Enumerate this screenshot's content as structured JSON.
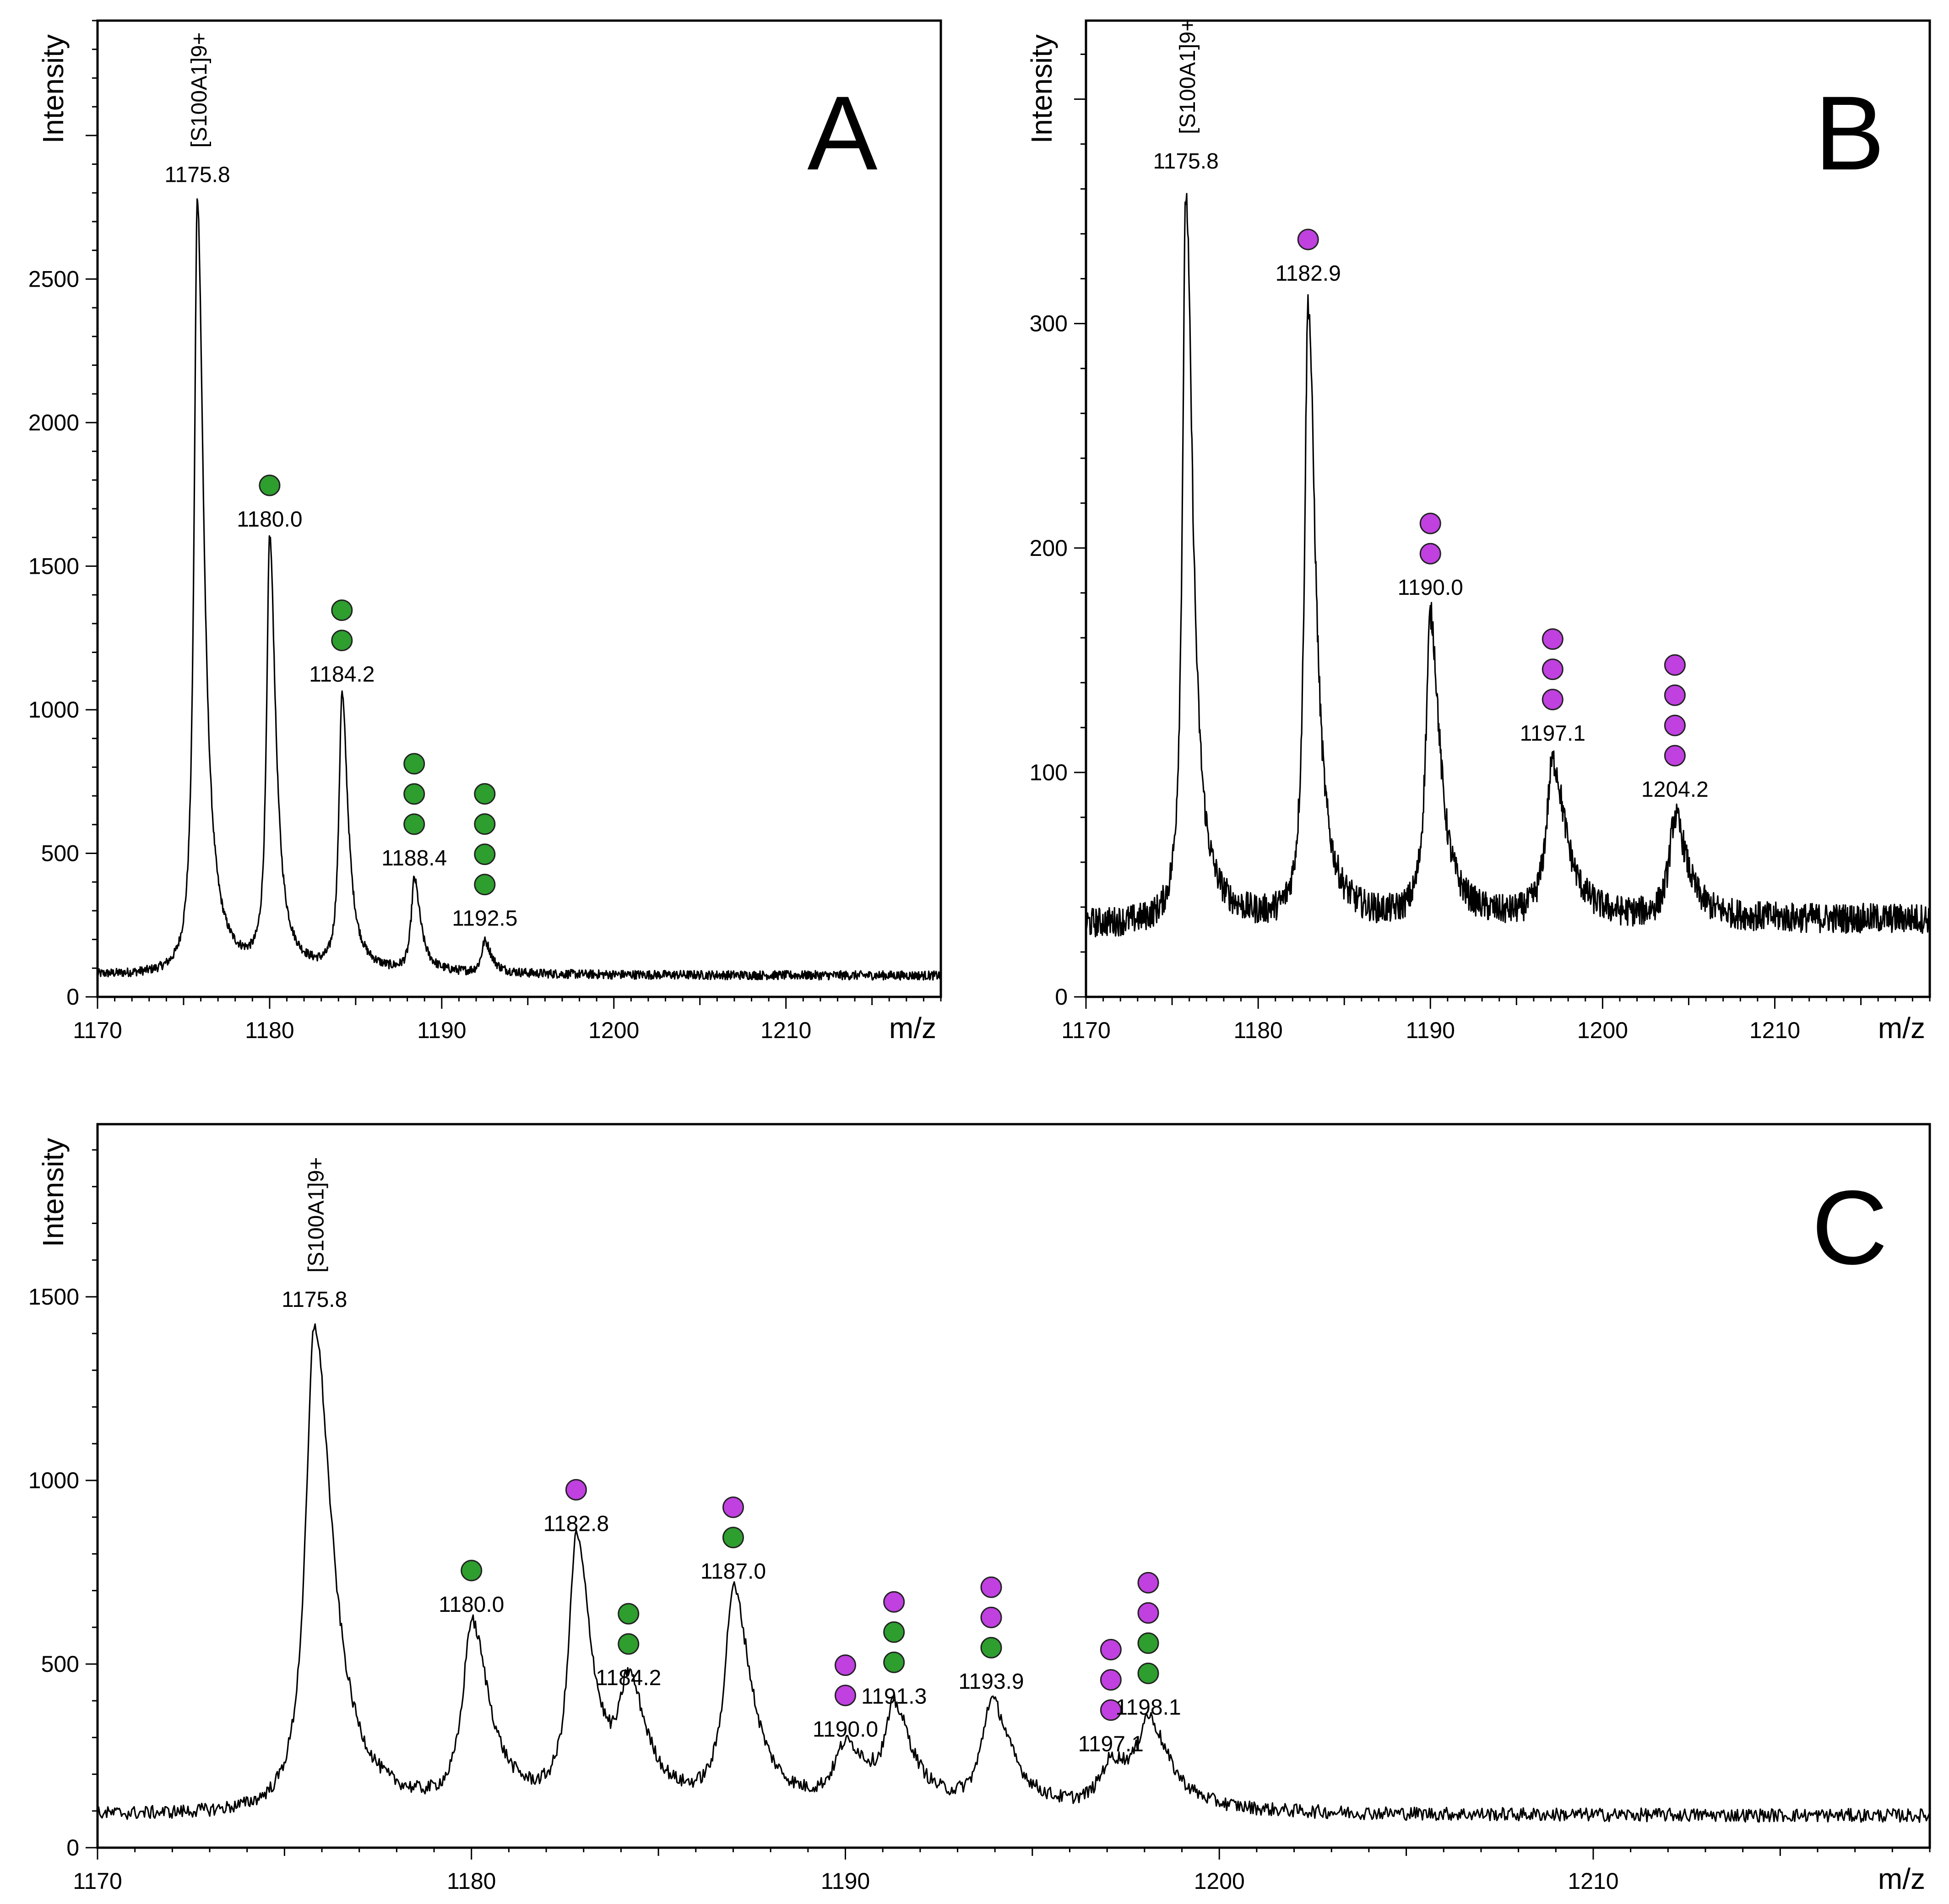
{
  "chart_data": [
    {
      "type": "line",
      "panel": "A",
      "xlabel": "m/z",
      "ylabel": "Intensity",
      "xlim": [
        1170,
        1219
      ],
      "ylim": [
        0,
        3400
      ],
      "xticks": [
        1170,
        1180,
        1190,
        1200,
        1210
      ],
      "yticks": [
        0,
        500,
        1000,
        1500,
        2000,
        2500
      ],
      "grid": false,
      "baseline": 90,
      "ion_label": "[S100A1]9+",
      "peaks": [
        {
          "mz": 1175.8,
          "intensity": 2700,
          "width": 0.28,
          "label": "1175.8",
          "glycans": []
        },
        {
          "mz": 1180.0,
          "intensity": 1500,
          "width": 0.26,
          "label": "1180.0",
          "glycans": [
            "#2e9e2e"
          ]
        },
        {
          "mz": 1184.2,
          "intensity": 960,
          "width": 0.26,
          "label": "1184.2",
          "glycans": [
            "#2e9e2e",
            "#2e9e2e"
          ]
        },
        {
          "mz": 1188.4,
          "intensity": 320,
          "width": 0.26,
          "label": "1188.4",
          "glycans": [
            "#2e9e2e",
            "#2e9e2e",
            "#2e9e2e"
          ]
        },
        {
          "mz": 1192.5,
          "intensity": 110,
          "width": 0.28,
          "label": "1192.5",
          "glycans": [
            "#2e9e2e",
            "#2e9e2e",
            "#2e9e2e",
            "#2e9e2e"
          ]
        }
      ]
    },
    {
      "type": "line",
      "panel": "B",
      "xlabel": "m/z",
      "ylabel": "Intensity",
      "xlim": [
        1170,
        1219
      ],
      "ylim": [
        0,
        435
      ],
      "xticks": [
        1170,
        1180,
        1190,
        1200,
        1210
      ],
      "yticks": [
        0,
        100,
        200,
        300
      ],
      "grid": false,
      "baseline": 38,
      "ion_label": "[S100A1]9+",
      "peaks": [
        {
          "mz": 1175.8,
          "intensity": 325,
          "width": 0.3,
          "label": "1175.8",
          "glycans": []
        },
        {
          "mz": 1182.9,
          "intensity": 275,
          "width": 0.32,
          "label": "1182.9",
          "glycans": [
            "#c040e0"
          ]
        },
        {
          "mz": 1190.0,
          "intensity": 135,
          "width": 0.4,
          "label": "1190.0",
          "glycans": [
            "#c040e0",
            "#c040e0"
          ]
        },
        {
          "mz": 1197.1,
          "intensity": 70,
          "width": 0.55,
          "label": "1197.1",
          "glycans": [
            "#c040e0",
            "#c040e0",
            "#c040e0"
          ]
        },
        {
          "mz": 1204.2,
          "intensity": 45,
          "width": 0.5,
          "label": "1204.2",
          "glycans": [
            "#c040e0",
            "#c040e0",
            "#c040e0",
            "#c040e0"
          ]
        }
      ]
    },
    {
      "type": "line",
      "panel": "C",
      "xlabel": "m/z",
      "ylabel": "Intensity",
      "xlim": [
        1170,
        1219
      ],
      "ylim": [
        0,
        1970
      ],
      "xticks": [
        1170,
        1180,
        1190,
        1200,
        1210
      ],
      "yticks": [
        0,
        500,
        1000,
        1500
      ],
      "grid": false,
      "baseline": 105,
      "ion_label": "[S100A1]9+",
      "peaks": [
        {
          "mz": 1175.8,
          "intensity": 1330,
          "width": 0.35,
          "label": "1175.8",
          "glycans": []
        },
        {
          "mz": 1180.0,
          "intensity": 500,
          "width": 0.35,
          "label": "1180.0",
          "glycans": [
            "#2e9e2e"
          ]
        },
        {
          "mz": 1182.8,
          "intensity": 720,
          "width": 0.3,
          "label": "1182.8",
          "glycans": [
            "#c040e0"
          ]
        },
        {
          "mz": 1184.2,
          "intensity": 300,
          "width": 0.35,
          "label": "1184.2",
          "glycans": [
            "#2e9e2e",
            "#2e9e2e"
          ]
        },
        {
          "mz": 1187.0,
          "intensity": 590,
          "width": 0.35,
          "label": "1187.0",
          "glycans": [
            "#c040e0",
            "#2e9e2e"
          ]
        },
        {
          "mz": 1190.0,
          "intensity": 160,
          "width": 0.45,
          "label": "1190.0",
          "glycans": [
            "#c040e0",
            "#c040e0"
          ]
        },
        {
          "mz": 1191.3,
          "intensity": 250,
          "width": 0.35,
          "label": "1191.3",
          "glycans": [
            "#c040e0",
            "#2e9e2e",
            "#2e9e2e"
          ]
        },
        {
          "mz": 1193.9,
          "intensity": 290,
          "width": 0.38,
          "label": "1193.9",
          "glycans": [
            "#c040e0",
            "#c040e0",
            "#2e9e2e"
          ]
        },
        {
          "mz": 1197.1,
          "intensity": 120,
          "width": 0.45,
          "label": "1197.1",
          "glycans": [
            "#c040e0",
            "#c040e0",
            "#c040e0"
          ]
        },
        {
          "mz": 1198.1,
          "intensity": 220,
          "width": 0.4,
          "label": "1198.1",
          "glycans": [
            "#c040e0",
            "#c040e0",
            "#2e9e2e",
            "#2e9e2e"
          ]
        }
      ]
    }
  ]
}
